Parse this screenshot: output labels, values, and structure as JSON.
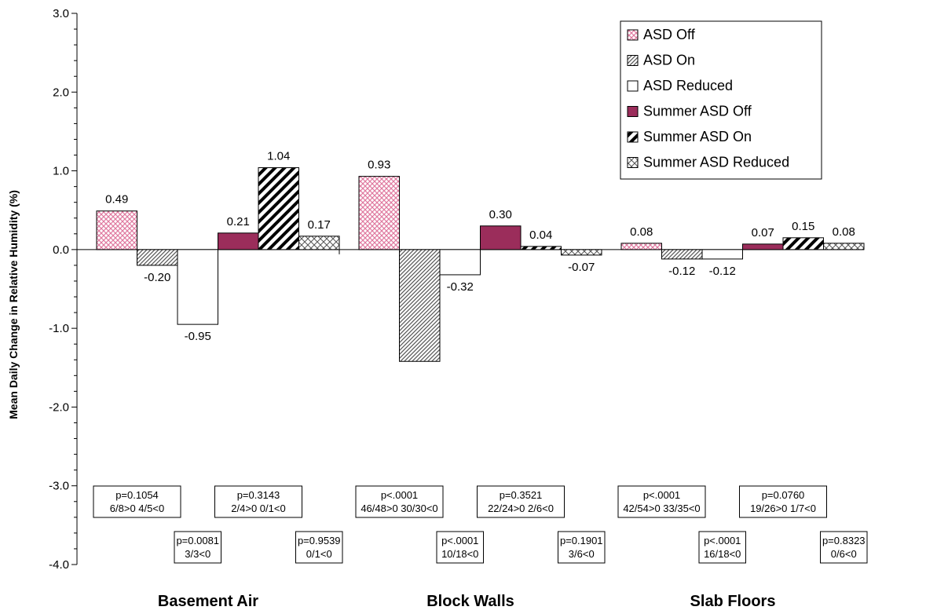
{
  "chart_data": {
    "type": "bar",
    "categories": [
      "Basement Air",
      "Block Walls",
      "Slab Floors"
    ],
    "ylabel": "Mean Daily Change in Relative Humidity (%)",
    "ylim": [
      -4.0,
      3.0
    ],
    "yticks": [
      "3.0",
      "2.0",
      "1.0",
      "0.0",
      "-1.0",
      "-2.0",
      "-3.0",
      "-4.0"
    ],
    "series": [
      {
        "name": "ASD Off",
        "values": [
          0.49,
          0.93,
          0.08
        ],
        "labels": [
          "0.49",
          "0.93",
          "0.08"
        ],
        "pattern": "crosshatch-pink"
      },
      {
        "name": "ASD On",
        "values": [
          -0.2,
          -1.42,
          -0.12
        ],
        "labels": [
          "-0.20",
          "",
          "-0.12"
        ],
        "pattern": "diag-fine"
      },
      {
        "name": "ASD Reduced",
        "values": [
          -0.95,
          -0.32,
          -0.12
        ],
        "labels": [
          "-0.95",
          "-0.32",
          "-0.12"
        ],
        "pattern": "white"
      },
      {
        "name": "Summer ASD Off",
        "values": [
          0.21,
          0.3,
          0.07
        ],
        "labels": [
          "0.21",
          "0.30",
          "0.07"
        ],
        "pattern": "solid-maroon"
      },
      {
        "name": "Summer ASD On",
        "values": [
          1.04,
          0.04,
          0.15
        ],
        "labels": [
          "1.04",
          "0.04",
          "0.15"
        ],
        "pattern": "diag-bold"
      },
      {
        "name": "Summer ASD Reduced",
        "values": [
          0.17,
          -0.07,
          0.08
        ],
        "labels": [
          "0.17",
          "-0.07",
          "0.08"
        ],
        "pattern": "diamond"
      }
    ],
    "legend_position": "top-right",
    "grid": false,
    "annotations": [
      [
        {
          "lines": [
            "p=0.1054",
            "6/8>0    4/5<0"
          ],
          "row": "upper",
          "series_span": [
            0,
            1
          ]
        },
        {
          "lines": [
            "p=0.0081",
            "3/3<0"
          ],
          "row": "lower",
          "series_span": [
            2,
            2
          ]
        },
        {
          "lines": [
            "p=0.3143",
            "2/4>0    0/1<0"
          ],
          "row": "upper",
          "series_span": [
            3,
            4
          ]
        },
        {
          "lines": [
            "p=0.9539",
            "0/1<0"
          ],
          "row": "lower",
          "series_span": [
            5,
            5
          ]
        }
      ],
      [
        {
          "lines": [
            "p<.0001",
            "46/48>0    30/30<0"
          ],
          "row": "upper",
          "series_span": [
            0,
            1
          ]
        },
        {
          "lines": [
            "p<.0001",
            "10/18<0"
          ],
          "row": "lower",
          "series_span": [
            2,
            2
          ]
        },
        {
          "lines": [
            "p=0.3521",
            "22/24>0    2/6<0"
          ],
          "row": "upper",
          "series_span": [
            3,
            4
          ]
        },
        {
          "lines": [
            "p=0.1901",
            "3/6<0"
          ],
          "row": "lower",
          "series_span": [
            5,
            5
          ]
        }
      ],
      [
        {
          "lines": [
            "p<.0001",
            "42/54>0    33/35<0"
          ],
          "row": "upper",
          "series_span": [
            0,
            1
          ]
        },
        {
          "lines": [
            "p<.0001",
            "16/18<0"
          ],
          "row": "lower",
          "series_span": [
            2,
            2
          ]
        },
        {
          "lines": [
            "p=0.0760",
            "19/26>0    1/7<0"
          ],
          "row": "upper",
          "series_span": [
            3,
            4
          ]
        },
        {
          "lines": [
            "p=0.8323",
            "0/6<0"
          ],
          "row": "lower",
          "series_span": [
            5,
            5
          ]
        }
      ]
    ],
    "colors": {
      "pink": "#e07aa0",
      "maroon": "#9b2d5b",
      "black": "#000000"
    }
  }
}
